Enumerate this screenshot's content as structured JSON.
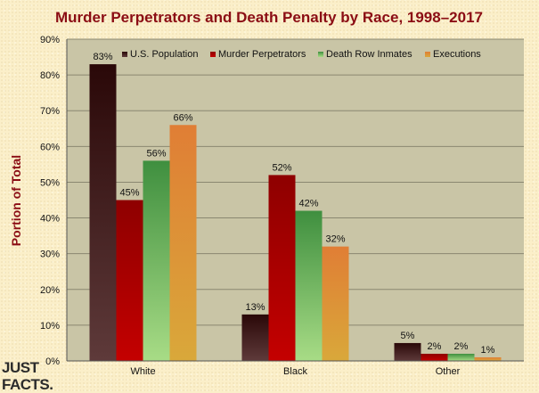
{
  "chart_data": {
    "type": "bar",
    "title": "Murder Perpetrators and Death Penalty by Race, 1998–2017",
    "xlabel": "",
    "ylabel": "Portion of Total",
    "categories": [
      "White",
      "Black",
      "Other"
    ],
    "series": [
      {
        "name": "U.S. Population",
        "values": [
          83,
          13,
          5
        ],
        "labels": [
          "83%",
          "13%",
          "5%"
        ],
        "color_dark": "#2a0808",
        "color_light": "#5e3a3a"
      },
      {
        "name": "Murder Perpetrators",
        "values": [
          45,
          52,
          2
        ],
        "labels": [
          "45%",
          "52%",
          "2%"
        ],
        "color_dark": "#8e0000",
        "color_light": "#c40000"
      },
      {
        "name": "Death Row Inmates",
        "values": [
          56,
          42,
          2
        ],
        "labels": [
          "56%",
          "42%",
          "2%"
        ],
        "color_dark": "#3f8f3f",
        "color_light": "#a8dc86"
      },
      {
        "name": "Executions",
        "values": [
          66,
          32,
          1
        ],
        "labels": [
          "66%",
          "32%",
          "1%"
        ],
        "color_dark": "#e07e35",
        "color_light": "#d9a83a"
      }
    ],
    "ylim": [
      0,
      90
    ],
    "yticks": [
      "0%",
      "10%",
      "20%",
      "30%",
      "40%",
      "50%",
      "60%",
      "70%",
      "80%",
      "90%"
    ],
    "grid": true,
    "legend_position": "top",
    "plot_background": "#c9c5a6",
    "gridline_color": "#8a8770"
  },
  "logo": {
    "line1": "JUST",
    "line2": "FACTS."
  }
}
